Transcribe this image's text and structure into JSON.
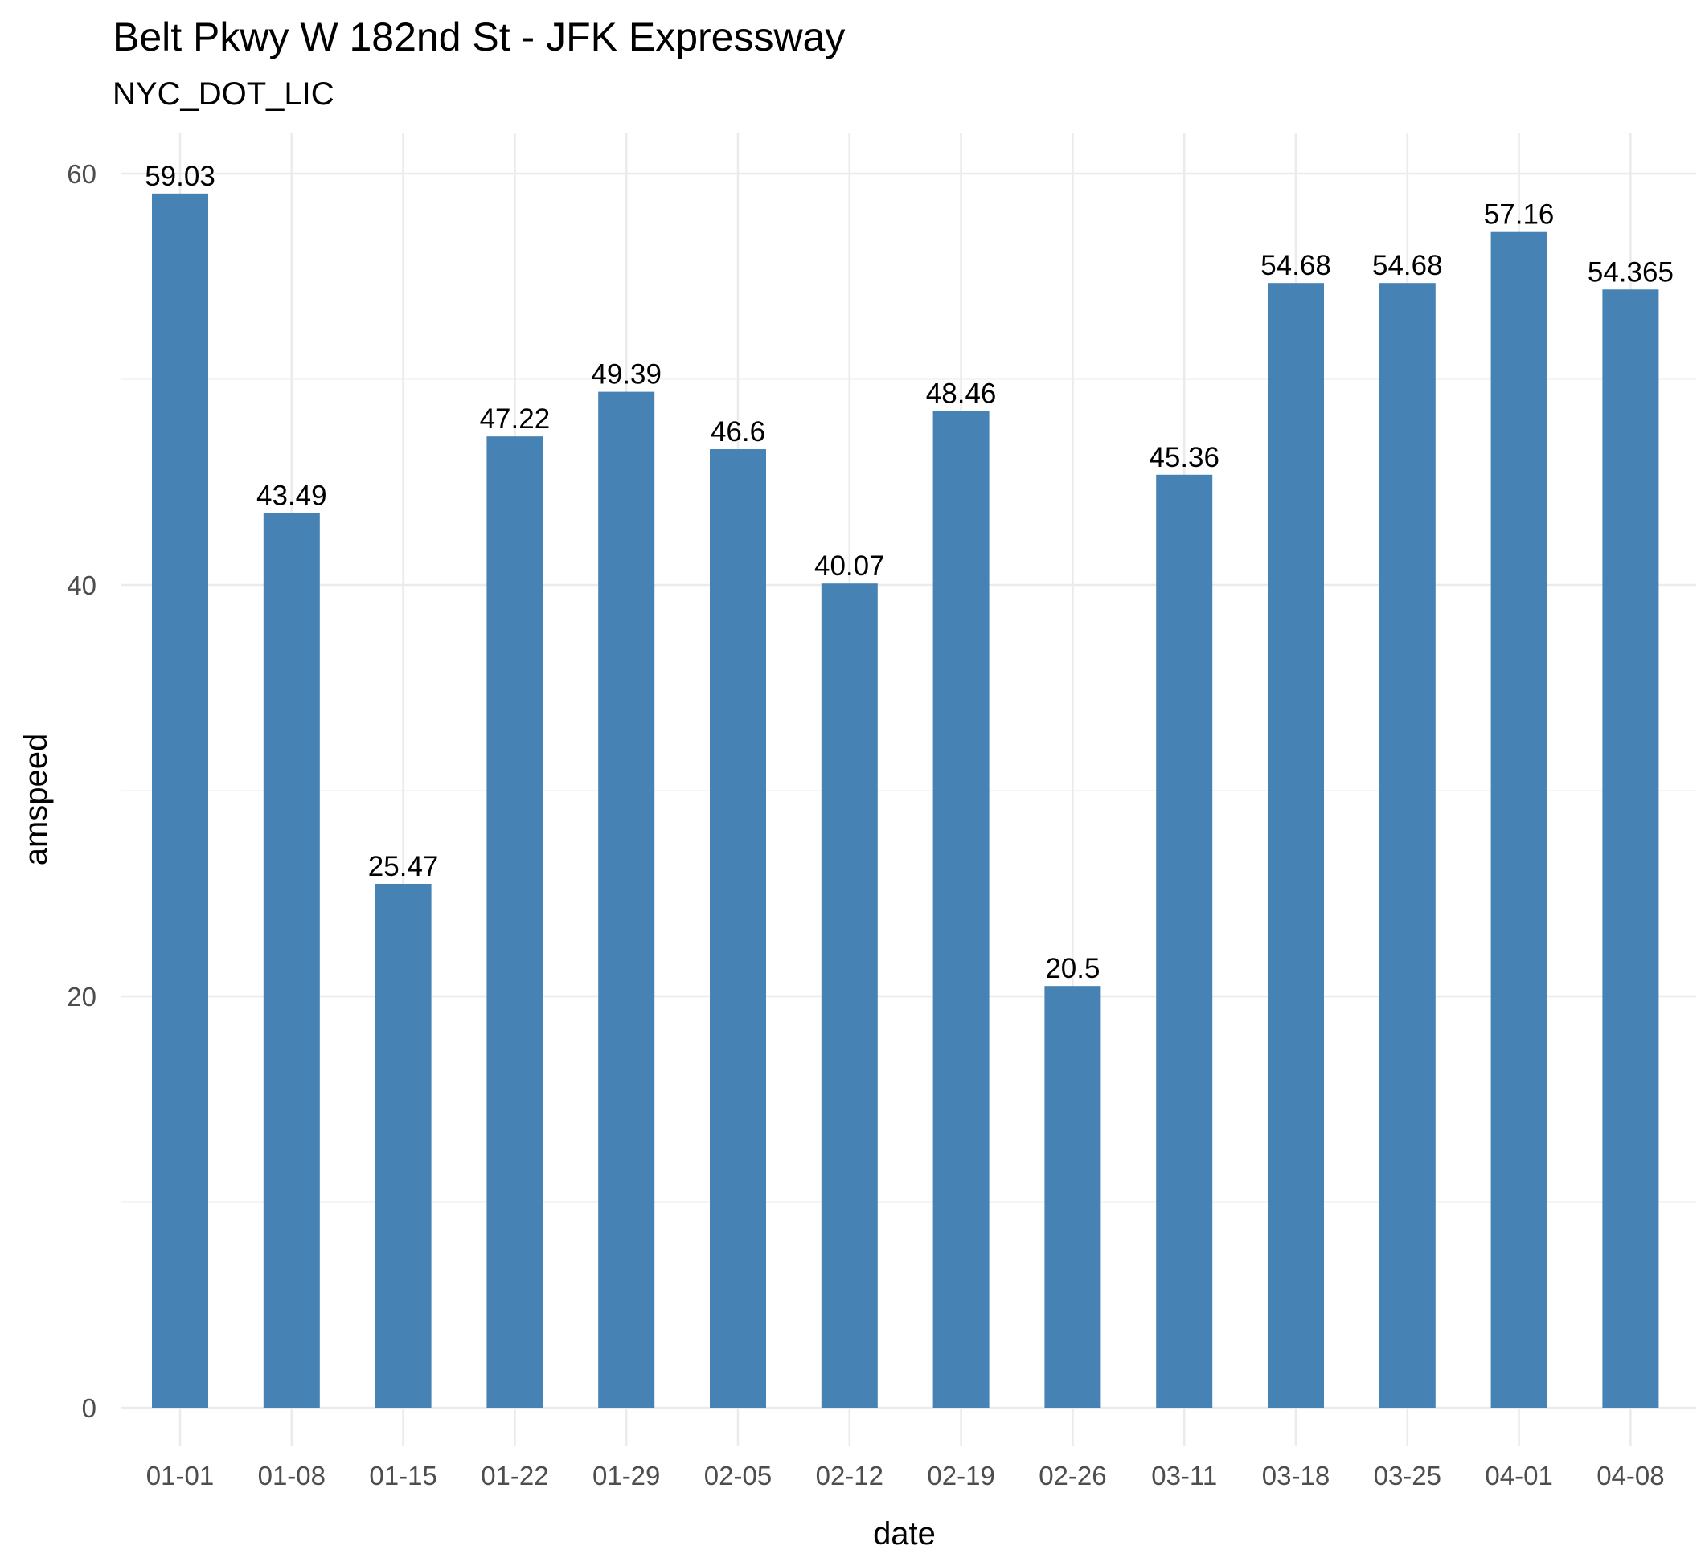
{
  "chart_data": {
    "type": "bar",
    "title": "Belt Pkwy W 182nd St - JFK Expressway",
    "subtitle": "NYC_DOT_LIC",
    "xlabel": "date",
    "ylabel": "amspeed",
    "categories": [
      "01-01",
      "01-08",
      "01-15",
      "01-22",
      "01-29",
      "02-05",
      "02-12",
      "02-19",
      "02-26",
      "03-11",
      "03-18",
      "03-25",
      "04-01",
      "04-08"
    ],
    "values": [
      59.03,
      43.49,
      25.47,
      47.22,
      49.39,
      46.6,
      40.07,
      48.46,
      20.5,
      45.36,
      54.68,
      54.68,
      57.16,
      54.365
    ],
    "value_labels": [
      "59.03",
      "43.49",
      "25.47",
      "47.22",
      "49.39",
      "46.6",
      "40.07",
      "48.46",
      "20.5",
      "45.36",
      "54.68",
      "54.68",
      "57.16",
      "54.365"
    ],
    "ylim": [
      0,
      62
    ],
    "y_ticks": [
      0,
      20,
      40,
      60
    ],
    "y_tick_labels": [
      "0",
      "20",
      "40",
      "60"
    ],
    "y_minor_ticks": [
      10,
      30,
      50
    ],
    "grid": true,
    "legend": "none",
    "bar_color": "#4682b4"
  }
}
